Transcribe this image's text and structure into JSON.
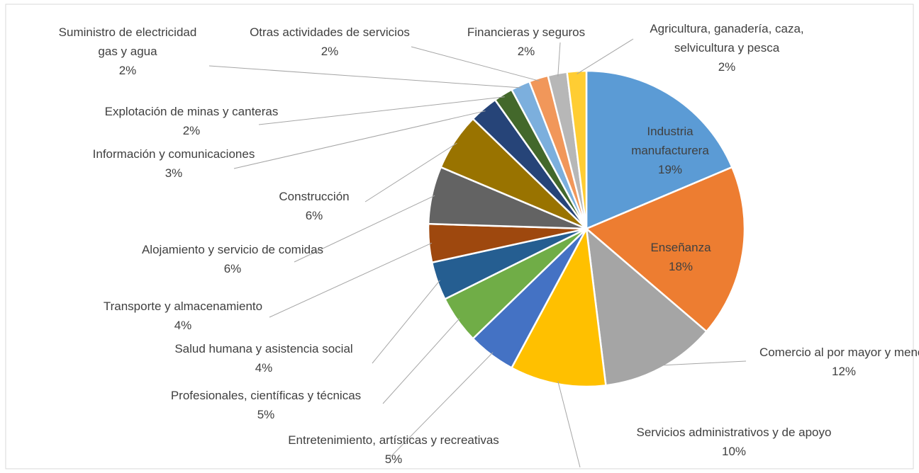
{
  "chart_data": {
    "type": "pie",
    "categories": [
      "Industria manufacturera",
      "Enseñanza",
      "Comercio al por mayor y menor",
      "Servicios administrativos y de apoyo",
      "Entretenimiento, artísticas y recreativas",
      "Profesionales, científicas y técnicas",
      "Salud humana y asistencia social",
      "Transporte y almacenamiento",
      "Alojamiento y servicio de comidas",
      "Construcción",
      "Información y comunicaciones",
      "Explotación de minas y canteras",
      "Suministro de electricidad gas y agua",
      "Otras actividades de servicios",
      "Financieras y seguros",
      "Agricultura, ganadería, caza, selvicultura y pesca"
    ],
    "values": [
      19,
      18,
      12,
      10,
      5,
      5,
      4,
      4,
      6,
      6,
      3,
      2,
      2,
      2,
      2,
      2
    ],
    "value_labels": [
      "19%",
      "18%",
      "12%",
      "10%",
      "5%",
      "5%",
      "4%",
      "4%",
      "6%",
      "6%",
      "3%",
      "2%",
      "2%",
      "2%",
      "2%",
      "2%"
    ],
    "colors": [
      "#5b9bd5",
      "#ed7d31",
      "#a5a5a5",
      "#ffc000",
      "#4472c4",
      "#70ad47",
      "#255e91",
      "#9e480e",
      "#636363",
      "#997300",
      "#264478",
      "#43682b",
      "#7cafdd",
      "#f1975a",
      "#b7b7b7",
      "#ffcd33"
    ]
  }
}
